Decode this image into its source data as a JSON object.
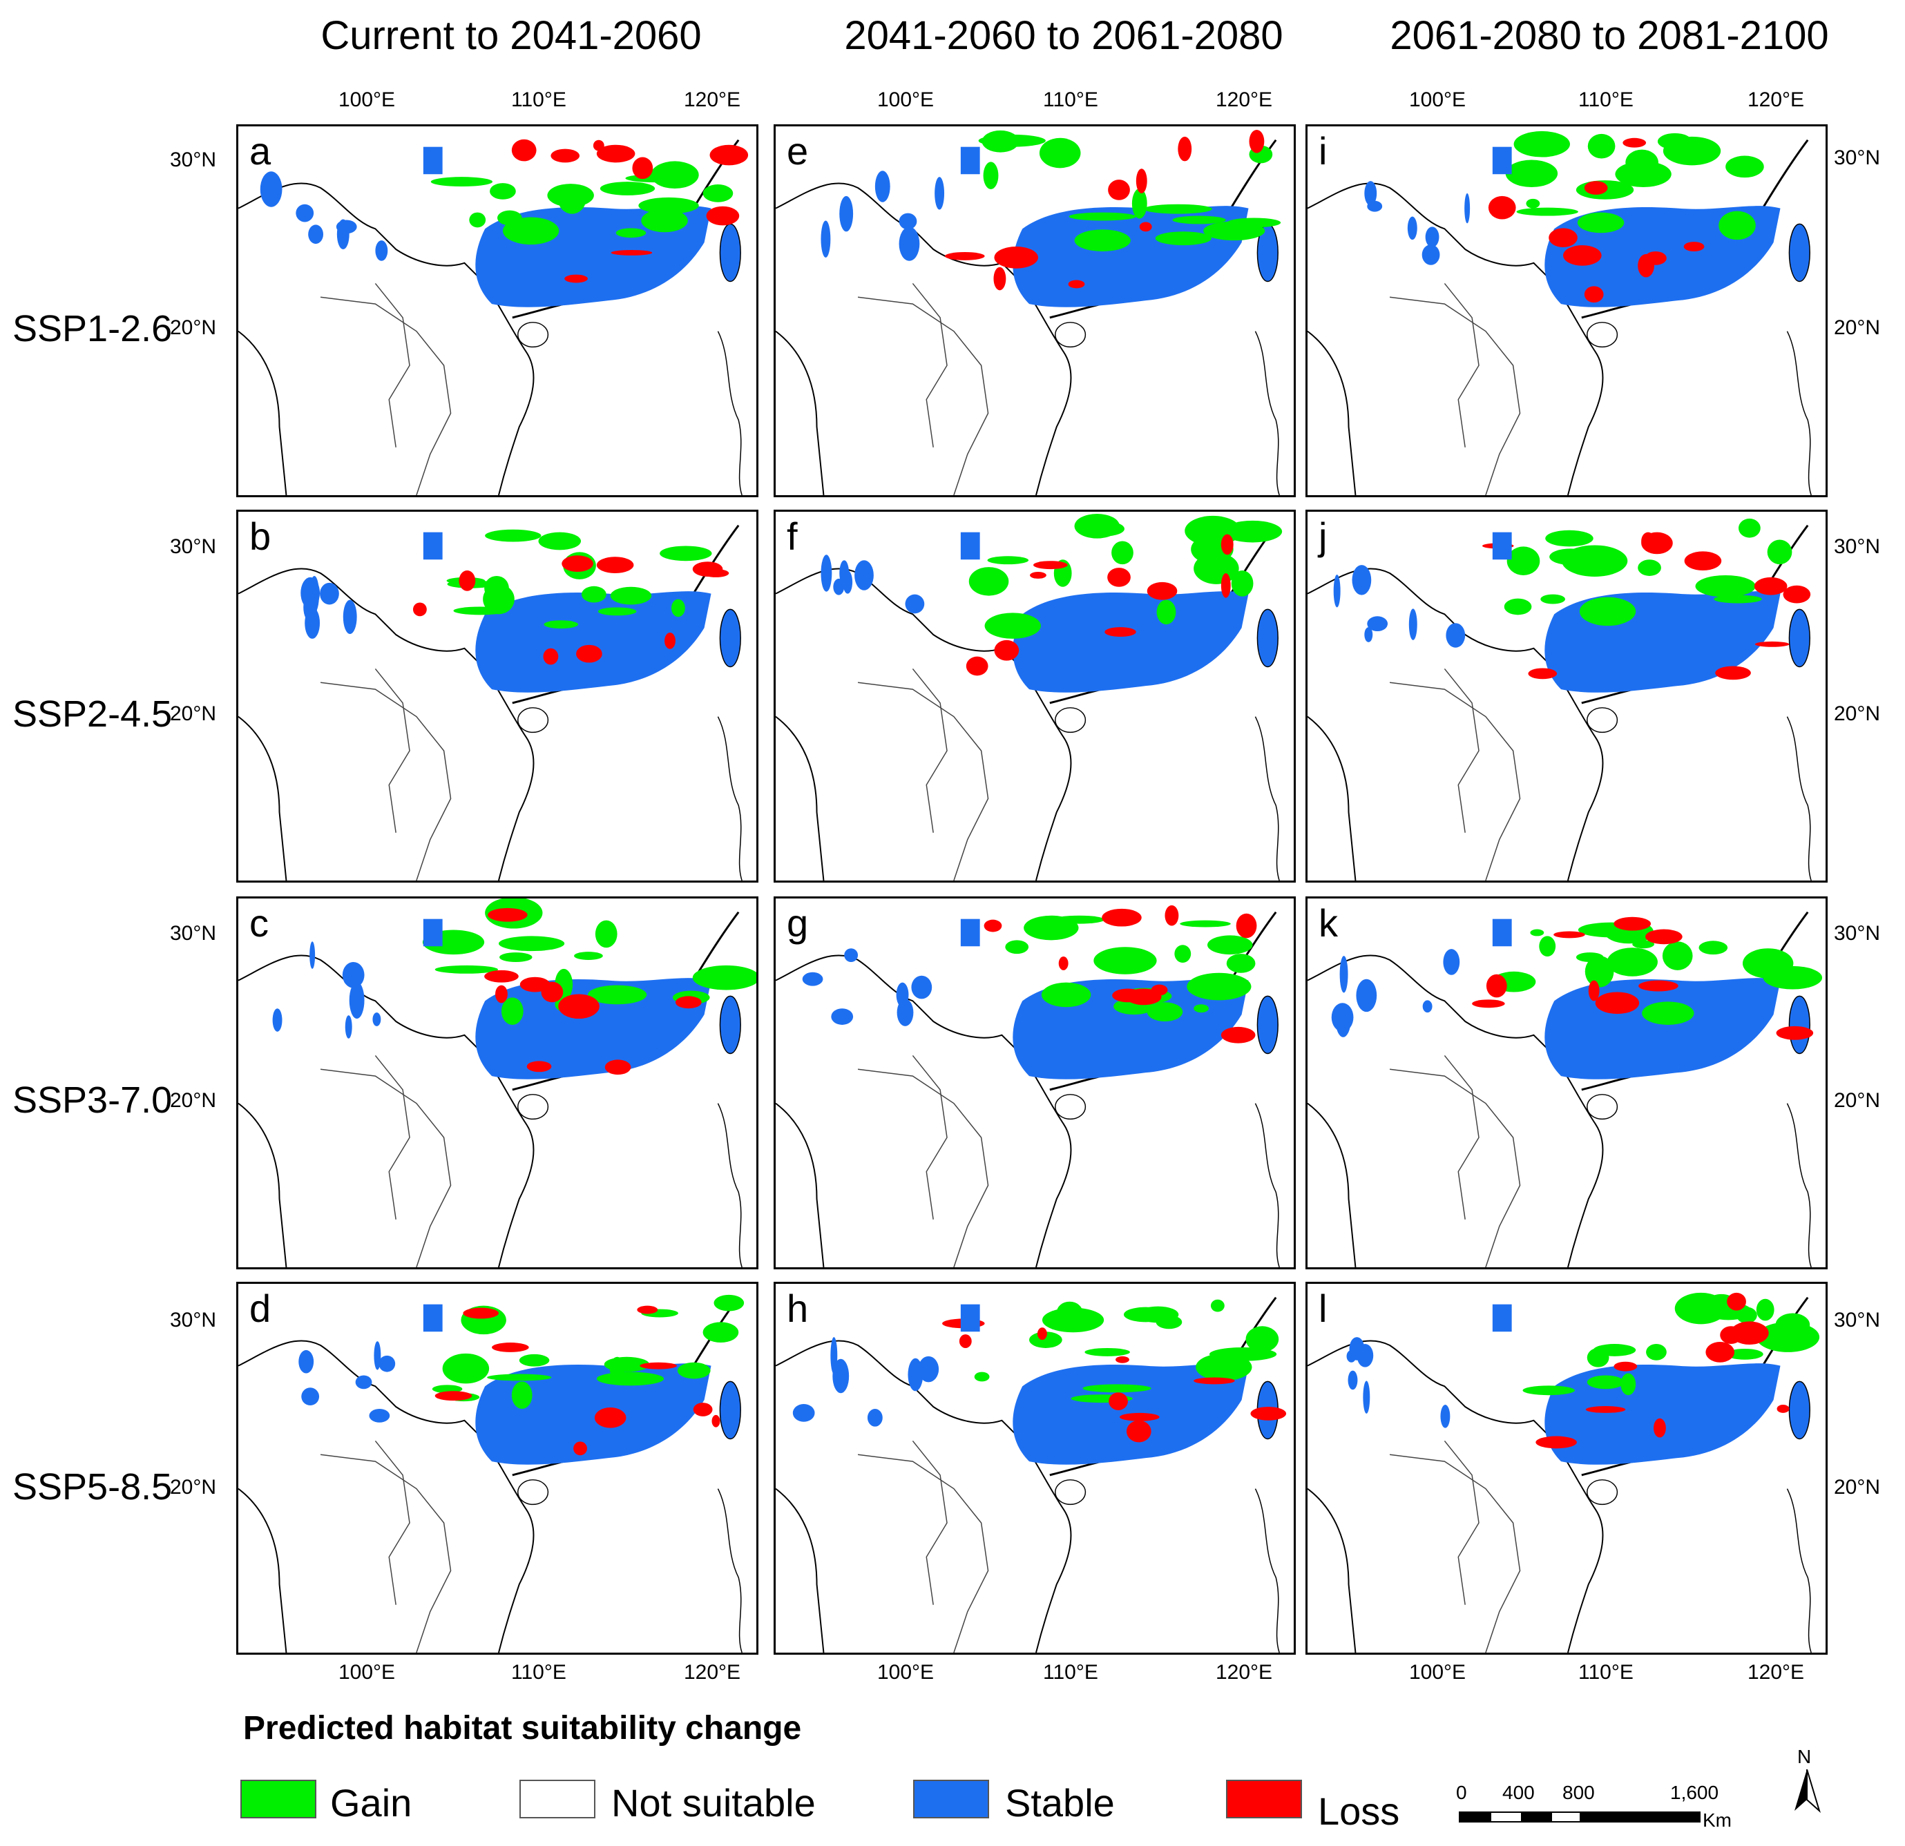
{
  "figure": {
    "column_titles": [
      "Current to 2041-2060",
      "2041-2060 to 2061-2080",
      "2061-2080 to 2081-2100"
    ],
    "row_labels": [
      "SSP1-2.6",
      "SSP2-4.5",
      "SSP3-7.0",
      "SSP5-8.5"
    ],
    "panel_letters": [
      "a",
      "b",
      "c",
      "d",
      "e",
      "f",
      "g",
      "h",
      "i",
      "j",
      "k",
      "l"
    ],
    "longitude_ticks": [
      "100°E",
      "110°E",
      "120°E"
    ],
    "latitude_ticks": [
      "30°N",
      "20°N"
    ]
  },
  "legend": {
    "title": "Predicted habitat suitability change",
    "items": [
      {
        "label": "Gain",
        "color": "#00ee00"
      },
      {
        "label": "Not suitable",
        "color": "#ffffff"
      },
      {
        "label": "Stable",
        "color": "#1e6ff0"
      },
      {
        "label": "Loss",
        "color": "#ff0000"
      }
    ]
  },
  "scale_bar": {
    "labels": [
      "0",
      "400",
      "800",
      "1,600"
    ],
    "unit": "Km"
  },
  "north_arrow": {
    "label": "N"
  },
  "map_colors": {
    "gain": "#00ee00",
    "stable": "#1e6ff0",
    "loss": "#ff0000",
    "outline": "#000000"
  }
}
